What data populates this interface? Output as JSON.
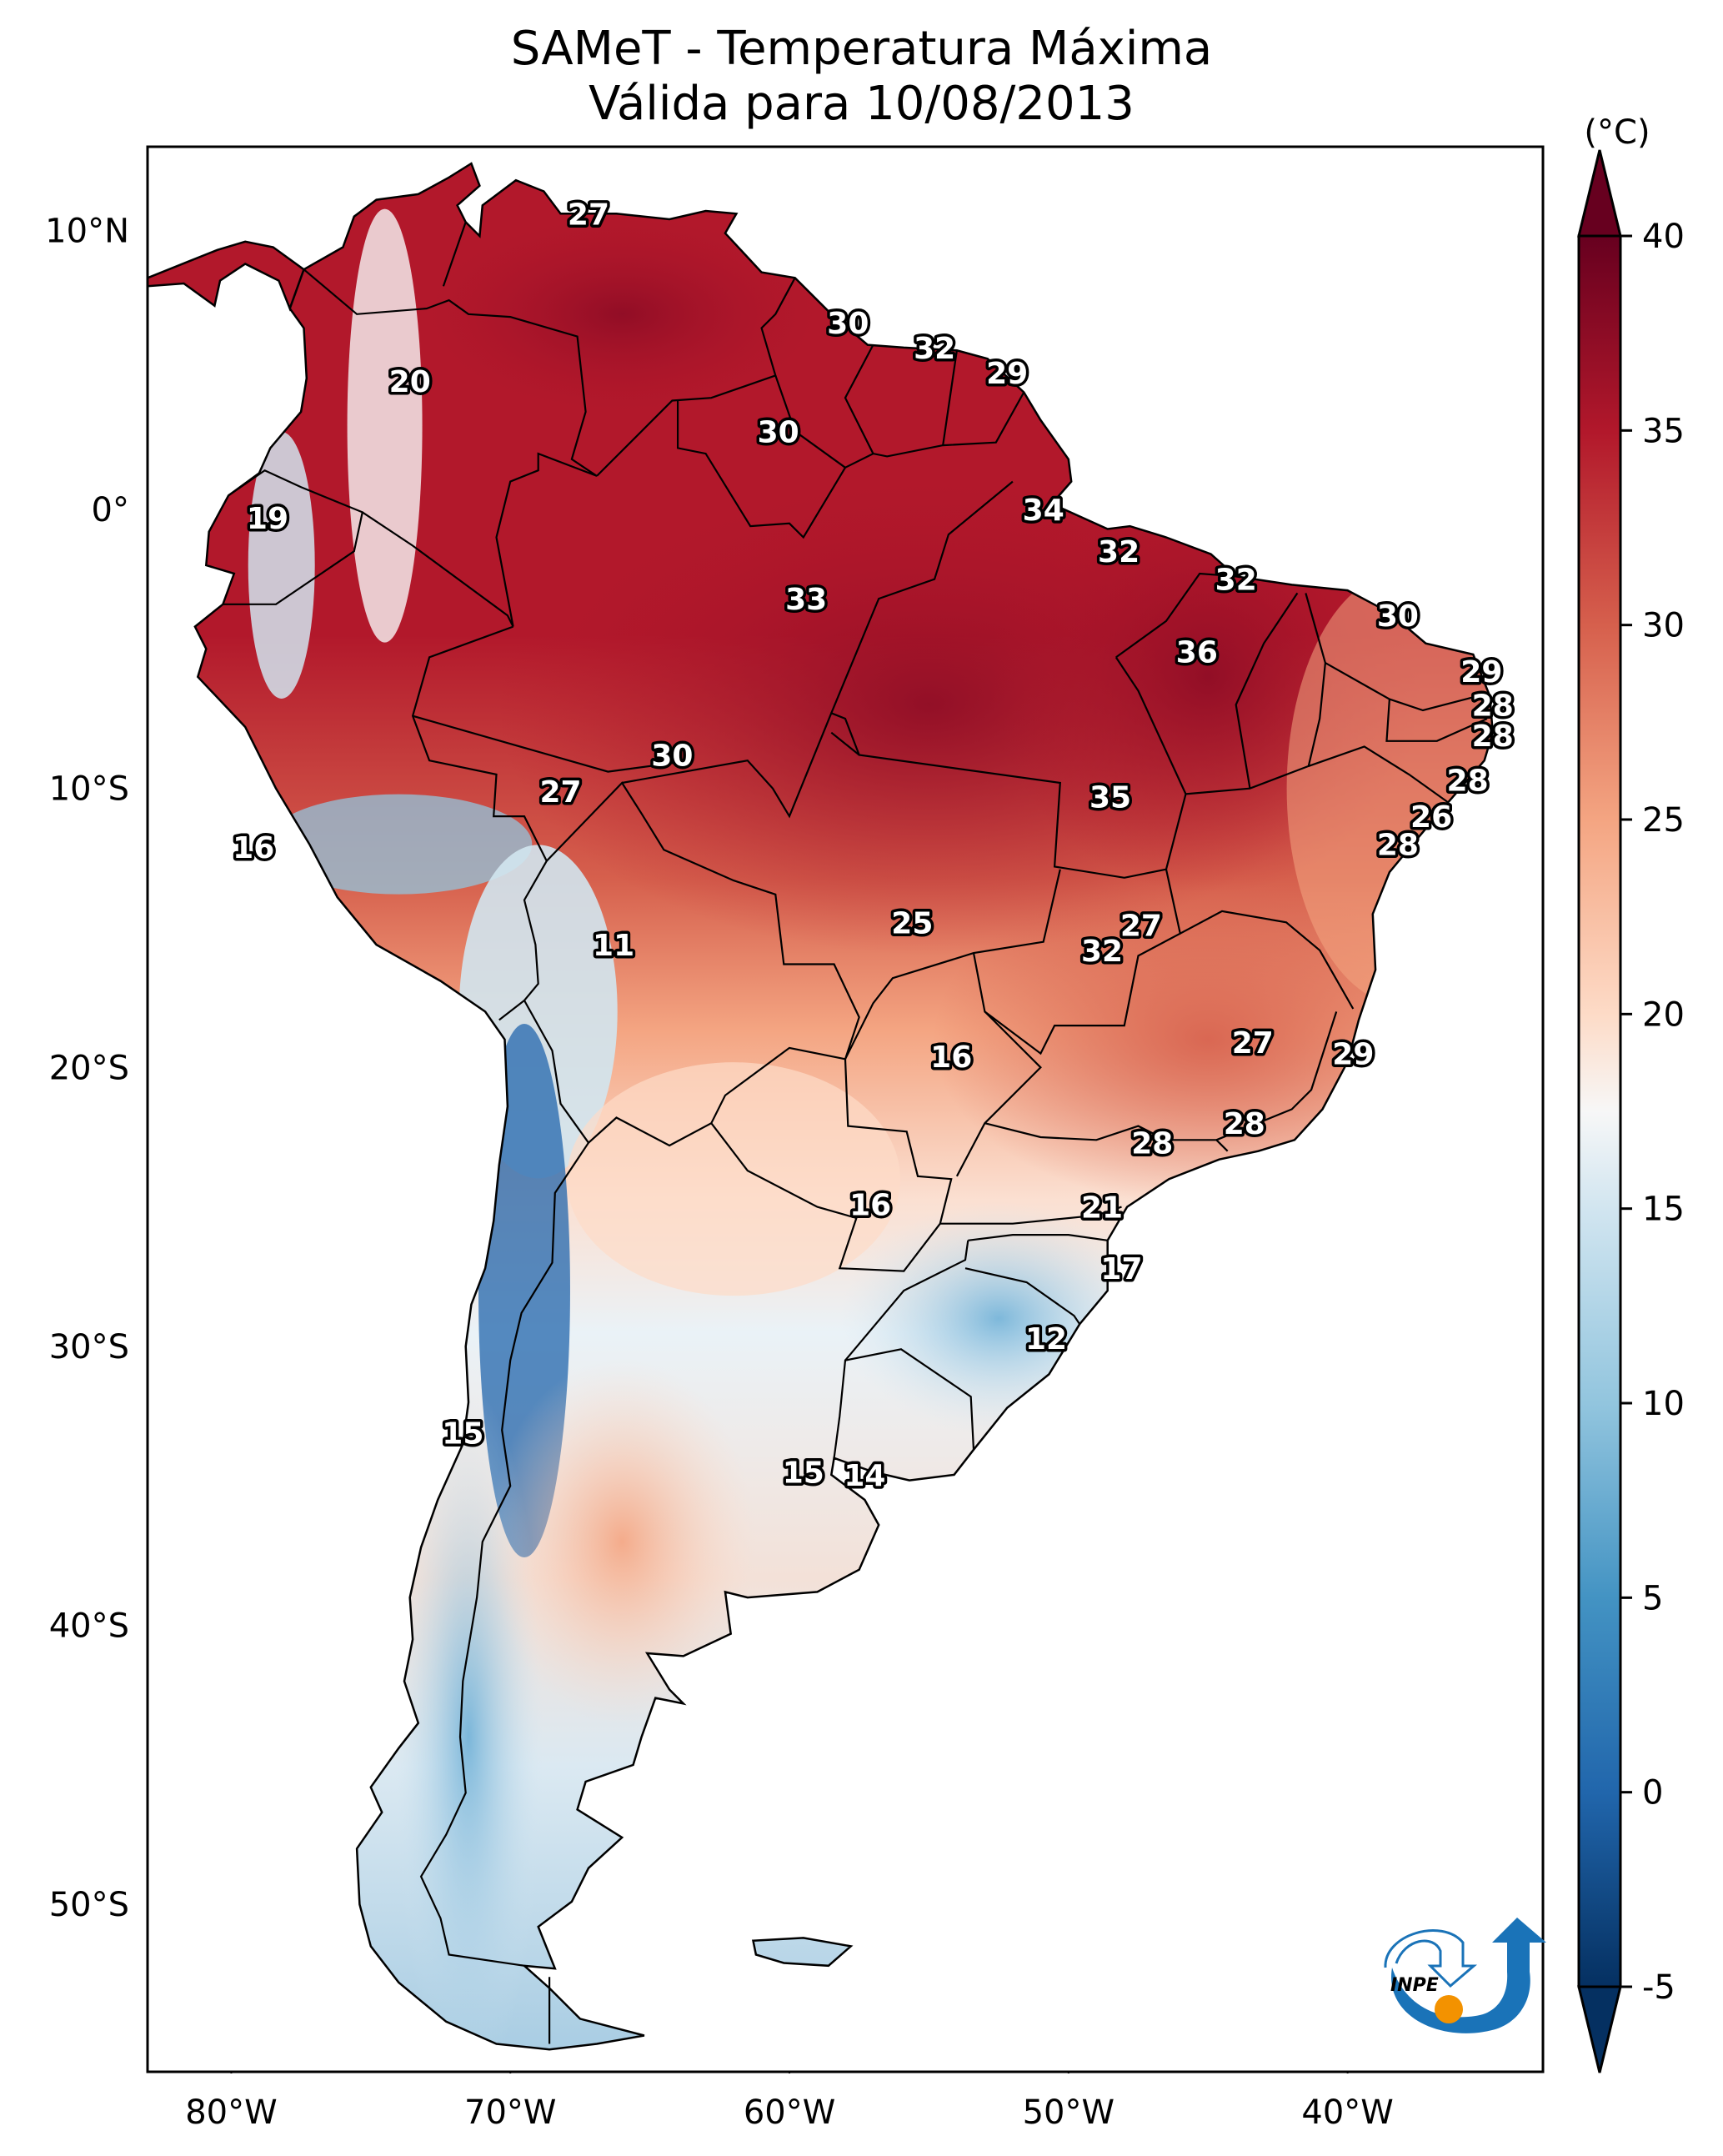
{
  "title": {
    "line1": "SAMeT - Temperatura Máxima",
    "line2": "Válida para 10/08/2013"
  },
  "chart_data": {
    "type": "heatmap",
    "title": "SAMeT - Temperatura Máxima",
    "subtitle": "Válida para 10/08/2013",
    "variable": "Maximum temperature",
    "units": "(°C)",
    "xlabel": "",
    "ylabel": "",
    "x_ticks": [
      "80°W",
      "70°W",
      "60°W",
      "50°W",
      "40°W"
    ],
    "x_tick_values": [
      -80,
      -70,
      -60,
      -50,
      -40
    ],
    "y_ticks": [
      "10°N",
      "0°",
      "10°S",
      "20°S",
      "30°S",
      "40°S",
      "50°S"
    ],
    "y_tick_values": [
      10,
      0,
      -10,
      -20,
      -30,
      -40,
      -50
    ],
    "xlim": [
      -83,
      -33
    ],
    "ylim": [
      -56,
      13
    ],
    "colorbar": {
      "label": "(°C)",
      "ticks": [
        40,
        35,
        30,
        25,
        20,
        15,
        10,
        5,
        0,
        -5
      ],
      "range": [
        -5,
        40
      ],
      "extend": "both",
      "colormap": "RdBu_r",
      "stops": [
        {
          "value": -5,
          "color": "#053061"
        },
        {
          "value": 0,
          "color": "#2166ac"
        },
        {
          "value": 5,
          "color": "#4393c3"
        },
        {
          "value": 10,
          "color": "#92c5de"
        },
        {
          "value": 15,
          "color": "#d1e5f0"
        },
        {
          "value": 17.5,
          "color": "#f7f7f7"
        },
        {
          "value": 20,
          "color": "#fddbc7"
        },
        {
          "value": 25,
          "color": "#f4a582"
        },
        {
          "value": 30,
          "color": "#d6604d"
        },
        {
          "value": 35,
          "color": "#b2182b"
        },
        {
          "value": 40,
          "color": "#67001f"
        }
      ]
    },
    "annotations": [
      {
        "value": "27",
        "lon": -67.2,
        "lat": 10.6
      },
      {
        "value": "20",
        "lon": -73.6,
        "lat": 4.6
      },
      {
        "value": "30",
        "lon": -57.9,
        "lat": 6.7
      },
      {
        "value": "32",
        "lon": -54.8,
        "lat": 5.8
      },
      {
        "value": "29",
        "lon": -52.2,
        "lat": 4.9
      },
      {
        "value": "30",
        "lon": -60.4,
        "lat": 2.8
      },
      {
        "value": "19",
        "lon": -78.7,
        "lat": -0.3
      },
      {
        "value": "34",
        "lon": -50.9,
        "lat": 0.0
      },
      {
        "value": "32",
        "lon": -48.2,
        "lat": -1.5
      },
      {
        "value": "33",
        "lon": -59.4,
        "lat": -3.2
      },
      {
        "value": "32",
        "lon": -44.0,
        "lat": -2.5
      },
      {
        "value": "30",
        "lon": -38.2,
        "lat": -3.8
      },
      {
        "value": "36",
        "lon": -45.4,
        "lat": -5.1
      },
      {
        "value": "29",
        "lon": -35.2,
        "lat": -5.8
      },
      {
        "value": "28",
        "lon": -34.8,
        "lat": -7.0
      },
      {
        "value": "28",
        "lon": -34.8,
        "lat": -8.1
      },
      {
        "value": "30",
        "lon": -64.2,
        "lat": -8.8
      },
      {
        "value": "27",
        "lon": -68.2,
        "lat": -10.1
      },
      {
        "value": "35",
        "lon": -48.5,
        "lat": -10.3
      },
      {
        "value": "28",
        "lon": -35.7,
        "lat": -9.7
      },
      {
        "value": "26",
        "lon": -37.0,
        "lat": -11.0
      },
      {
        "value": "16",
        "lon": -79.2,
        "lat": -12.1
      },
      {
        "value": "28",
        "lon": -38.2,
        "lat": -12.0
      },
      {
        "value": "25",
        "lon": -55.6,
        "lat": -14.8
      },
      {
        "value": "27",
        "lon": -47.4,
        "lat": -14.9
      },
      {
        "value": "32",
        "lon": -48.8,
        "lat": -15.8
      },
      {
        "value": "11",
        "lon": -66.3,
        "lat": -15.6
      },
      {
        "value": "16",
        "lon": -54.2,
        "lat": -19.6
      },
      {
        "value": "27",
        "lon": -43.4,
        "lat": -19.1
      },
      {
        "value": "29",
        "lon": -39.8,
        "lat": -19.5
      },
      {
        "value": "28",
        "lon": -47.0,
        "lat": -22.7
      },
      {
        "value": "28",
        "lon": -43.7,
        "lat": -22.0
      },
      {
        "value": "16",
        "lon": -57.1,
        "lat": -24.9
      },
      {
        "value": "21",
        "lon": -48.8,
        "lat": -25.0
      },
      {
        "value": "17",
        "lon": -48.1,
        "lat": -27.2
      },
      {
        "value": "12",
        "lon": -50.8,
        "lat": -29.7
      },
      {
        "value": "15",
        "lon": -71.7,
        "lat": -33.1
      },
      {
        "value": "15",
        "lon": -59.5,
        "lat": -34.5
      },
      {
        "value": "14",
        "lon": -57.3,
        "lat": -34.6
      }
    ]
  },
  "logo": {
    "text": "INPE",
    "colors": {
      "blue": "#1a73b8",
      "orange": "#f39200"
    }
  }
}
